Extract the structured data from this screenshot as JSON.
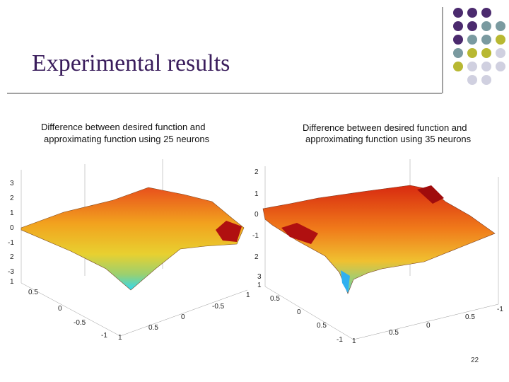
{
  "slide": {
    "title": "Experimental results",
    "page_number": "22"
  },
  "plots": [
    {
      "title_lines": [
        "Difference between desired function and",
        "approximating function using 25 neurons"
      ],
      "tick_labels": [
        "3",
        "2",
        "1",
        "0",
        "-1",
        "2",
        "-3",
        "1",
        "0.5",
        "0",
        "-0.5",
        "-1",
        "1",
        "0.5",
        "0",
        "-0.5",
        "1"
      ]
    },
    {
      "title_lines": [
        "Difference between desired function and",
        "approximating function using 35 neurons"
      ],
      "tick_labels": [
        "2",
        "1",
        "0",
        "-1",
        "2",
        "3",
        "1",
        "0.5",
        "0",
        "0.5",
        "-1",
        "1",
        "0.5",
        "0",
        "0.5",
        "-1"
      ]
    }
  ]
}
